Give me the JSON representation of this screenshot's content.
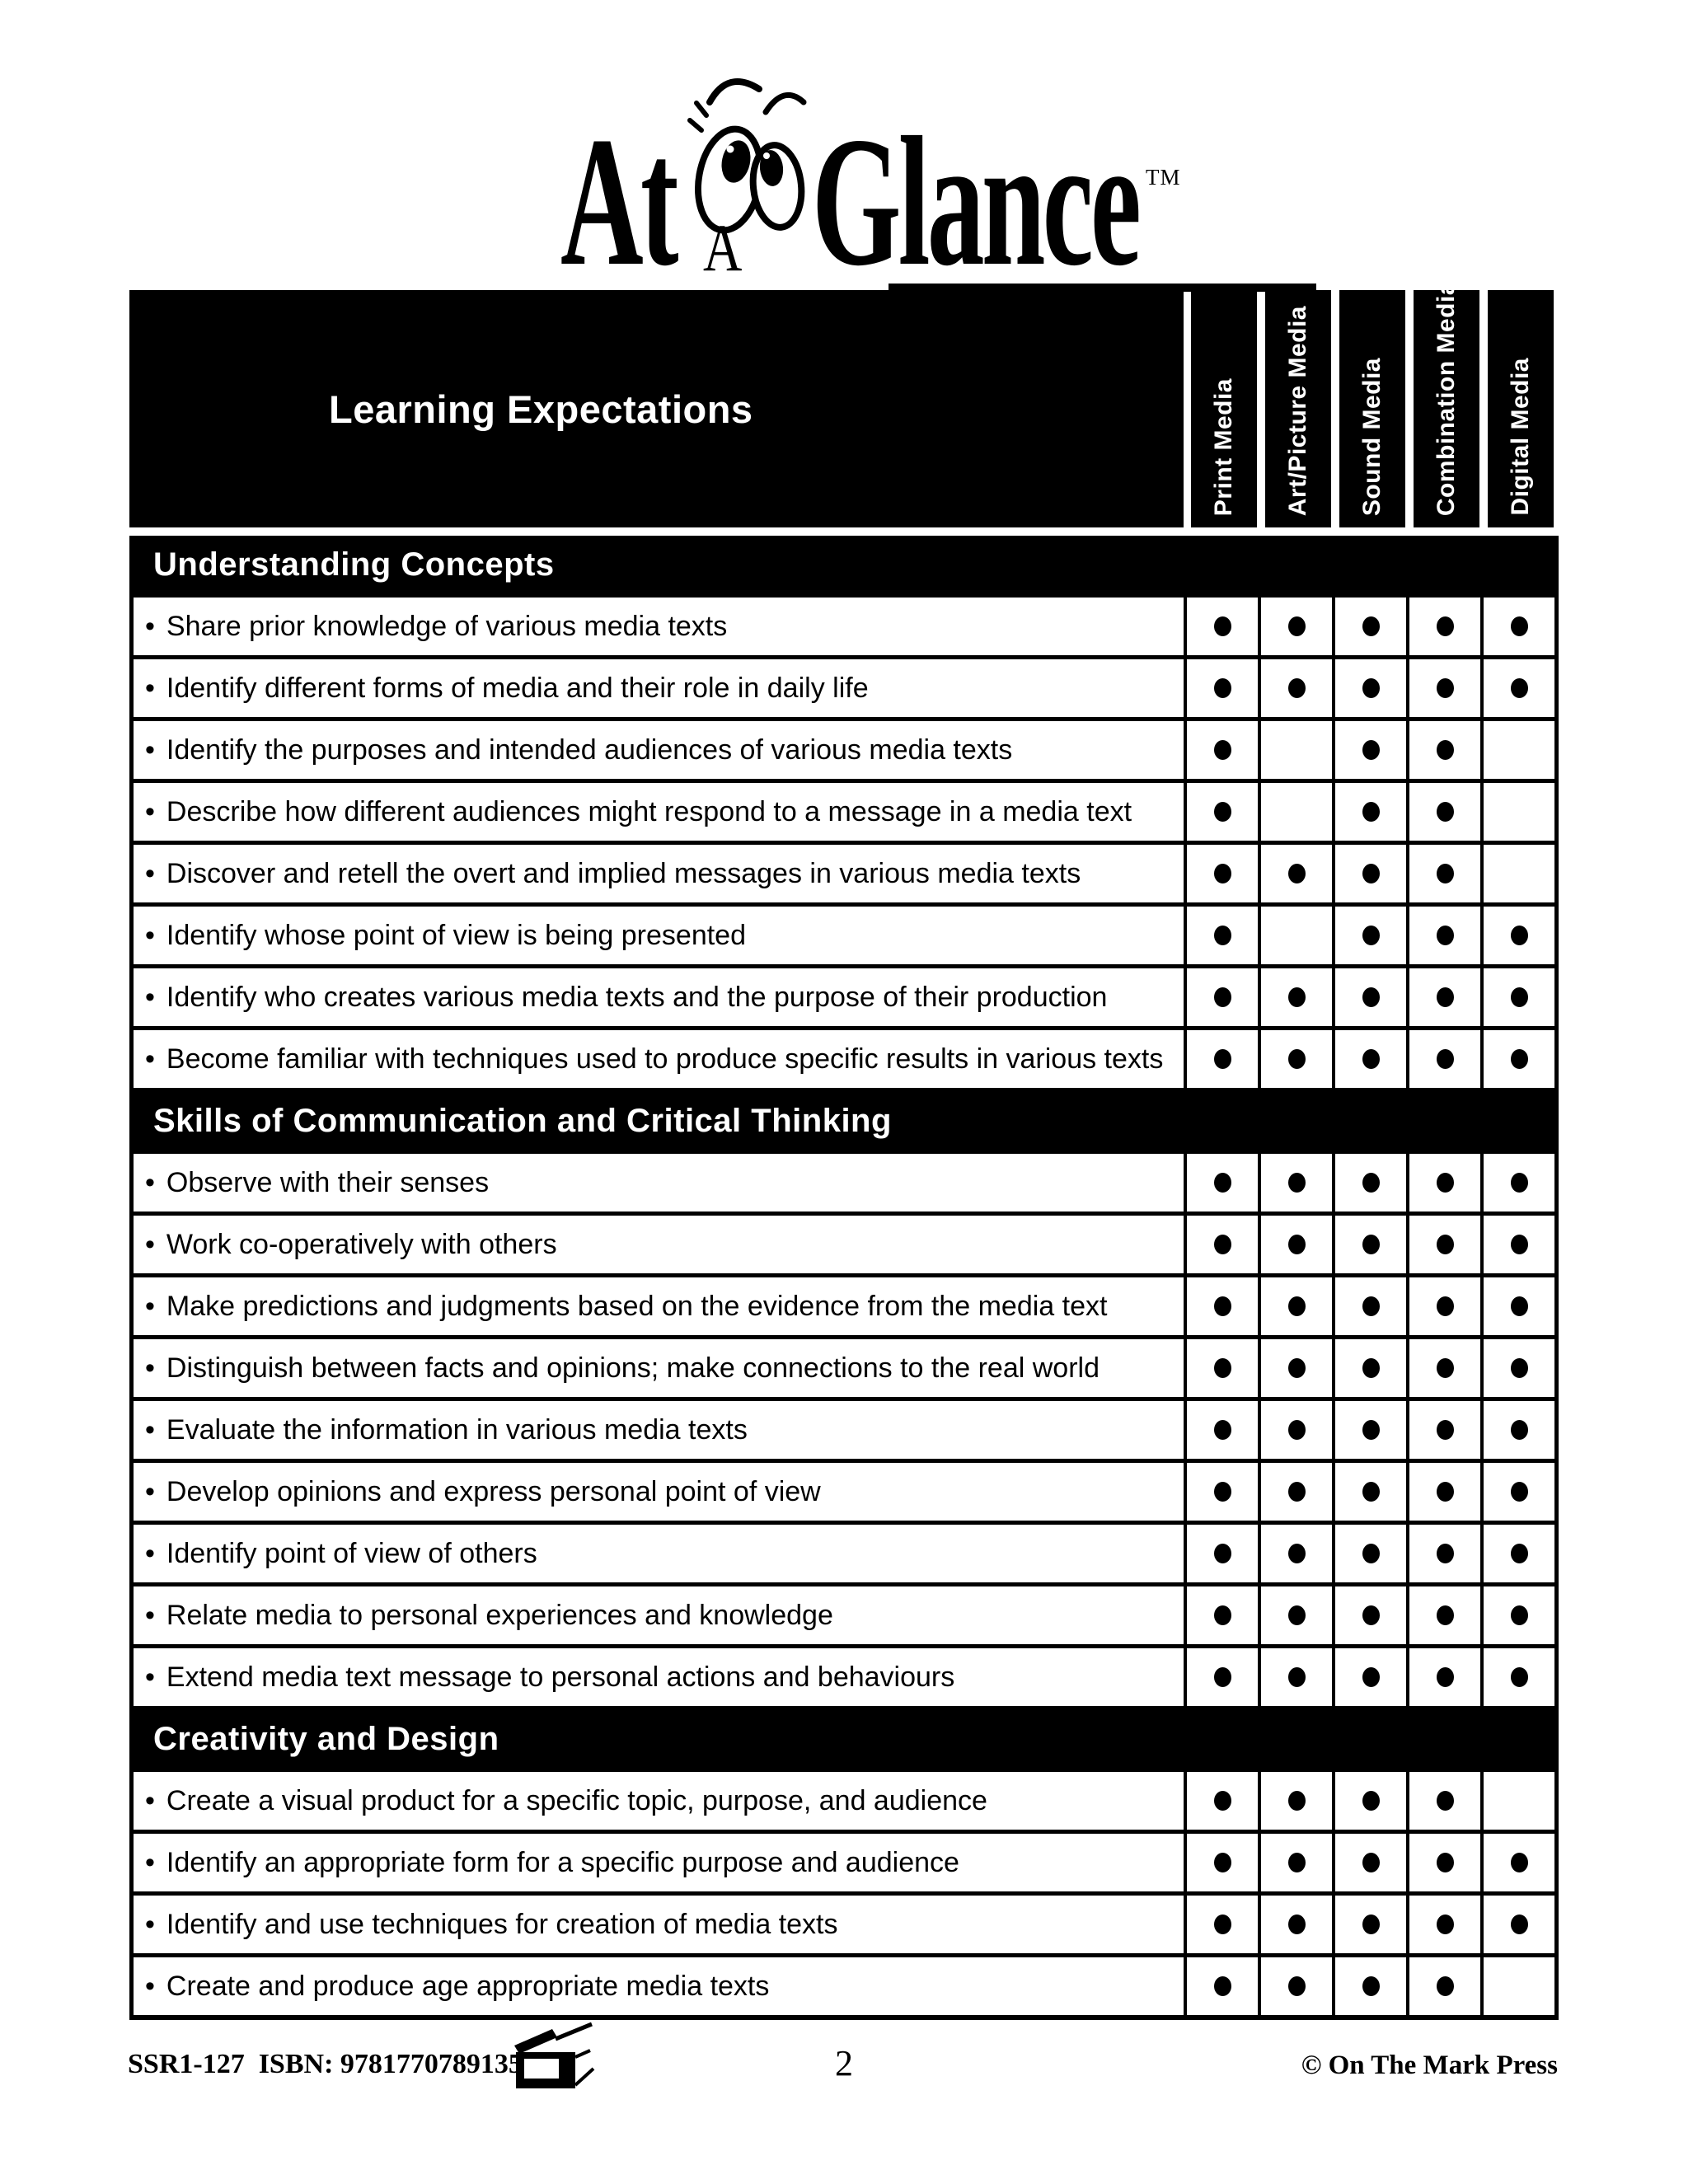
{
  "colors": {
    "ink": "#000000",
    "paper": "#ffffff"
  },
  "logo": {
    "at": "At",
    "a": "A",
    "glance": "Glance",
    "tm": "TM"
  },
  "table": {
    "bullet": "•",
    "header": {
      "title": "Learning Expectations",
      "columns": [
        "Print Media",
        "Art/Picture Media",
        "Sound Media",
        "Combination Media",
        "Digital Media"
      ]
    },
    "sections": [
      {
        "title": "Understanding Concepts",
        "rows": [
          {
            "label": "Share prior knowledge of various media texts",
            "media": [
              1,
              1,
              1,
              1,
              1
            ]
          },
          {
            "label": "Identify different forms of media and their role in daily life",
            "media": [
              1,
              1,
              1,
              1,
              1
            ]
          },
          {
            "label": "Identify the purposes and intended audiences of various media texts",
            "media": [
              1,
              0,
              1,
              1,
              0
            ]
          },
          {
            "label": "Describe how different audiences might respond to a message in a media text",
            "media": [
              1,
              0,
              1,
              1,
              0
            ]
          },
          {
            "label": "Discover and retell the overt and implied messages in various media texts",
            "media": [
              1,
              1,
              1,
              1,
              0
            ]
          },
          {
            "label": "Identify whose point of view is being presented",
            "media": [
              1,
              0,
              1,
              1,
              1
            ]
          },
          {
            "label": "Identify who creates various media texts and the purpose of their production",
            "media": [
              1,
              1,
              1,
              1,
              1
            ]
          },
          {
            "label": "Become familiar with techniques used to produce specific results in various texts",
            "media": [
              1,
              1,
              1,
              1,
              1
            ]
          }
        ]
      },
      {
        "title": "Skills of Communication and Critical Thinking",
        "rows": [
          {
            "label": "Observe with their senses",
            "media": [
              1,
              1,
              1,
              1,
              1
            ]
          },
          {
            "label": "Work co-operatively with others",
            "media": [
              1,
              1,
              1,
              1,
              1
            ]
          },
          {
            "label": "Make predictions and judgments based on the evidence from the media text",
            "media": [
              1,
              1,
              1,
              1,
              1
            ]
          },
          {
            "label": "Distinguish between facts and opinions; make connections to the real world",
            "media": [
              1,
              1,
              1,
              1,
              1
            ]
          },
          {
            "label": "Evaluate the information in various media texts",
            "media": [
              1,
              1,
              1,
              1,
              1
            ]
          },
          {
            "label": "Develop opinions and express personal point of view",
            "media": [
              1,
              1,
              1,
              1,
              1
            ]
          },
          {
            "label": "Identify point of view of others",
            "media": [
              1,
              1,
              1,
              1,
              1
            ]
          },
          {
            "label": "Relate media to personal experiences and knowledge",
            "media": [
              1,
              1,
              1,
              1,
              1
            ]
          },
          {
            "label": "Extend media text message to personal actions and behaviours",
            "media": [
              1,
              1,
              1,
              1,
              1
            ]
          }
        ]
      },
      {
        "title": "Creativity and Design",
        "rows": [
          {
            "label": "Create a visual product for a specific topic, purpose, and audience",
            "media": [
              1,
              1,
              1,
              1,
              0
            ]
          },
          {
            "label": "Identify an appropriate form for a specific purpose and audience",
            "media": [
              1,
              1,
              1,
              1,
              1
            ]
          },
          {
            "label": "Identify and use techniques for creation of media texts",
            "media": [
              1,
              1,
              1,
              1,
              1
            ]
          },
          {
            "label": "Create and produce age appropriate media texts",
            "media": [
              1,
              1,
              1,
              1,
              0
            ]
          }
        ]
      }
    ]
  },
  "footer": {
    "left": "SSR1-127  ISBN: 9781770789135",
    "page": "2",
    "right": "© On The Mark Press"
  }
}
